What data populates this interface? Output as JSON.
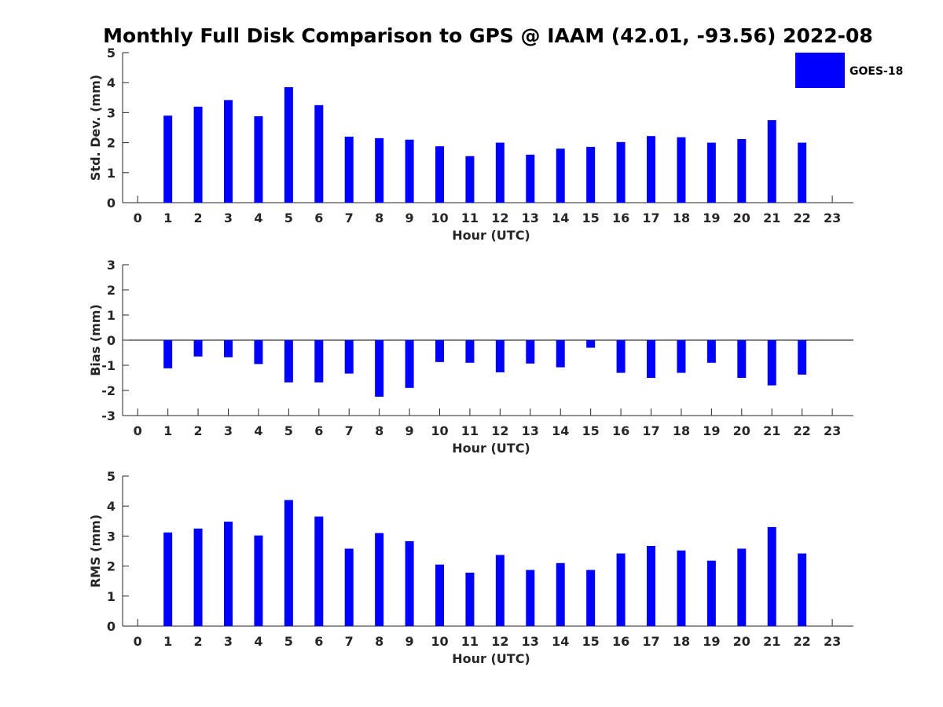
{
  "figure": {
    "title": "Monthly Full Disk Comparison to GPS @ IAAM (42.01, -93.56) 2022-08",
    "legend_label": "GOES-18",
    "bar_color": "#0000ff",
    "axis_color": "#262626"
  },
  "chart_data": [
    {
      "type": "bar",
      "id": "std",
      "title": "",
      "xlabel": "Hour (UTC)",
      "ylabel": "Std. Dev. (mm)",
      "xlim": [
        -0.5,
        23.7
      ],
      "ylim": [
        0,
        5
      ],
      "yticks": [
        0,
        1,
        2,
        3,
        4,
        5
      ],
      "categories": [
        0,
        1,
        2,
        3,
        4,
        5,
        6,
        7,
        8,
        9,
        10,
        11,
        12,
        13,
        14,
        15,
        16,
        17,
        18,
        19,
        20,
        21,
        22,
        23
      ],
      "series": [
        {
          "name": "GOES-18",
          "values": [
            null,
            2.9,
            3.2,
            3.42,
            2.88,
            3.85,
            3.25,
            2.2,
            2.15,
            2.1,
            1.88,
            1.55,
            2.0,
            1.6,
            1.8,
            1.86,
            2.02,
            2.22,
            2.18,
            2.0,
            2.12,
            2.75,
            2.0,
            null
          ]
        }
      ],
      "grid": false,
      "legend": "top-right"
    },
    {
      "type": "bar",
      "id": "bias",
      "title": "",
      "xlabel": "Hour (UTC)",
      "ylabel": "Bias (mm)",
      "xlim": [
        -0.5,
        23.7
      ],
      "ylim": [
        -3,
        3
      ],
      "yticks": [
        -3,
        -2,
        -1,
        0,
        1,
        2,
        3
      ],
      "categories": [
        0,
        1,
        2,
        3,
        4,
        5,
        6,
        7,
        8,
        9,
        10,
        11,
        12,
        13,
        14,
        15,
        16,
        17,
        18,
        19,
        20,
        21,
        22,
        23
      ],
      "series": [
        {
          "name": "GOES-18",
          "values": [
            null,
            -1.12,
            -0.65,
            -0.68,
            -0.95,
            -1.68,
            -1.68,
            -1.33,
            -2.25,
            -1.9,
            -0.87,
            -0.9,
            -1.28,
            -0.93,
            -1.08,
            -0.3,
            -1.3,
            -1.5,
            -1.3,
            -0.9,
            -1.5,
            -1.8,
            -1.37,
            null
          ]
        }
      ],
      "grid": false,
      "zero_line": true
    },
    {
      "type": "bar",
      "id": "rms",
      "title": "",
      "xlabel": "Hour (UTC)",
      "ylabel": "RMS (mm)",
      "xlim": [
        -0.5,
        23.7
      ],
      "ylim": [
        0,
        5
      ],
      "yticks": [
        0,
        1,
        2,
        3,
        4,
        5
      ],
      "categories": [
        0,
        1,
        2,
        3,
        4,
        5,
        6,
        7,
        8,
        9,
        10,
        11,
        12,
        13,
        14,
        15,
        16,
        17,
        18,
        19,
        20,
        21,
        22,
        23
      ],
      "series": [
        {
          "name": "GOES-18",
          "values": [
            null,
            3.12,
            3.25,
            3.48,
            3.02,
            4.2,
            3.65,
            2.58,
            3.1,
            2.83,
            2.05,
            1.78,
            2.37,
            1.87,
            2.1,
            1.87,
            2.42,
            2.67,
            2.52,
            2.18,
            2.58,
            3.3,
            2.42,
            null
          ]
        }
      ],
      "grid": false
    }
  ]
}
